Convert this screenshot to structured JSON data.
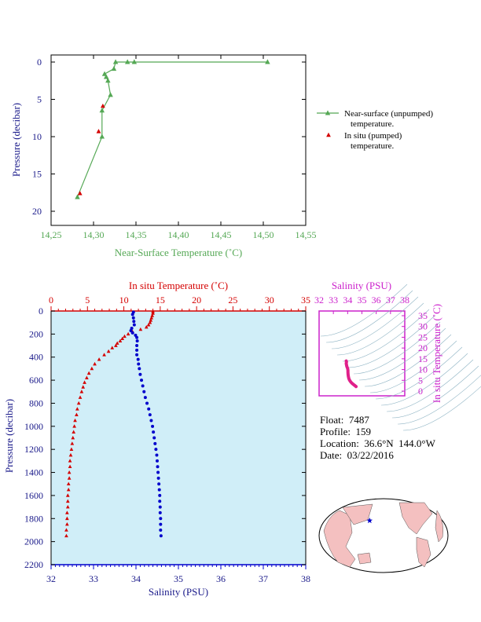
{
  "colors": {
    "green": "#55a855",
    "red": "#d40000",
    "blue": "#0000cc",
    "navy": "#1a1a8a",
    "magenta": "#cc22cc",
    "pink": "#e0208a",
    "panel_bg": "#d0eef8"
  },
  "legend": {
    "near_surface": [
      "Near-surface (unpumped)",
      "temperature."
    ],
    "in_situ": [
      "In situ (pumped)",
      "temperature."
    ]
  },
  "float_info": {
    "float": "Float:  7487",
    "profile": "Profile:  159",
    "location": "Location:  36.6°N  144.0°W",
    "date": "Date:  03/22/2016"
  },
  "map": {
    "marker": "star",
    "marker_lat": 36.6,
    "marker_lon": -144.0
  },
  "chart_data": [
    {
      "type": "line",
      "xlabel": "Near-Surface Temperature (˚C)",
      "ylabel": "Pressure (decibar)",
      "xlim": [
        14.25,
        14.55
      ],
      "ylim": [
        0,
        21
      ],
      "y_inverted": true,
      "xticks": [
        "14,25",
        "14,30",
        "14,35",
        "14,40",
        "14,45",
        "14,50",
        "14,55"
      ],
      "yticks": [
        "0",
        "5",
        "10",
        "15",
        "20"
      ],
      "series": [
        {
          "name": "Near-surface (unpumped) temperature.",
          "marker": "triangle",
          "points": [
            [
              14.505,
              0.0
            ],
            [
              14.348,
              0.0
            ],
            [
              14.34,
              0.0
            ],
            [
              14.326,
              0.0
            ],
            [
              14.324,
              0.9
            ],
            [
              14.313,
              1.6
            ],
            [
              14.315,
              2.0
            ],
            [
              14.317,
              2.5
            ],
            [
              14.32,
              4.4
            ],
            [
              14.31,
              6.5
            ],
            [
              14.31,
              10.0
            ],
            [
              14.281,
              18.1
            ]
          ]
        },
        {
          "name": "In situ (pumped) temperature.",
          "marker": "triangle",
          "points": [
            [
              14.311,
              5.9
            ],
            [
              14.306,
              9.3
            ],
            [
              14.284,
              17.6
            ]
          ]
        }
      ]
    },
    {
      "type": "scatter",
      "ylabel": "Pressure (decibar)",
      "x_top_label": "In situ Temperature (˚C)",
      "x_bottom_label": "Salinity (PSU)",
      "temp_lim": [
        0,
        35
      ],
      "sal_lim": [
        32,
        38
      ],
      "ylim": [
        0,
        2200
      ],
      "y_inverted": true,
      "temp_ticks": [
        "0",
        "5",
        "10",
        "15",
        "20",
        "25",
        "30",
        "35"
      ],
      "sal_ticks": [
        "32",
        "33",
        "34",
        "35",
        "36",
        "37",
        "38"
      ],
      "yticks": [
        "0",
        "200",
        "400",
        "600",
        "800",
        "1000",
        "1200",
        "1400",
        "1600",
        "1800",
        "2000",
        "2200"
      ],
      "temperature_profile": [
        [
          14.0,
          5
        ],
        [
          14.0,
          20
        ],
        [
          13.9,
          40
        ],
        [
          13.8,
          60
        ],
        [
          13.7,
          80
        ],
        [
          13.6,
          100
        ],
        [
          13.4,
          120
        ],
        [
          13.1,
          140
        ],
        [
          12.3,
          160
        ],
        [
          11.2,
          180
        ],
        [
          10.6,
          200
        ],
        [
          10.1,
          220
        ],
        [
          9.8,
          240
        ],
        [
          9.5,
          260
        ],
        [
          9.1,
          280
        ],
        [
          8.9,
          300
        ],
        [
          8.4,
          320
        ],
        [
          7.9,
          350
        ],
        [
          7.3,
          380
        ],
        [
          6.6,
          420
        ],
        [
          6.0,
          460
        ],
        [
          5.6,
          500
        ],
        [
          5.2,
          540
        ],
        [
          4.9,
          580
        ],
        [
          4.6,
          620
        ],
        [
          4.4,
          660
        ],
        [
          4.2,
          700
        ],
        [
          4.0,
          750
        ],
        [
          3.8,
          800
        ],
        [
          3.6,
          850
        ],
        [
          3.5,
          900
        ],
        [
          3.3,
          950
        ],
        [
          3.2,
          1000
        ],
        [
          3.1,
          1050
        ],
        [
          3.0,
          1100
        ],
        [
          2.9,
          1150
        ],
        [
          2.8,
          1200
        ],
        [
          2.7,
          1250
        ],
        [
          2.6,
          1300
        ],
        [
          2.6,
          1350
        ],
        [
          2.5,
          1400
        ],
        [
          2.5,
          1450
        ],
        [
          2.4,
          1500
        ],
        [
          2.4,
          1550
        ],
        [
          2.3,
          1600
        ],
        [
          2.3,
          1650
        ],
        [
          2.3,
          1700
        ],
        [
          2.2,
          1750
        ],
        [
          2.2,
          1800
        ],
        [
          2.2,
          1850
        ],
        [
          2.1,
          1900
        ],
        [
          2.1,
          1950
        ]
      ],
      "salinity_profile": [
        [
          33.94,
          10
        ],
        [
          33.92,
          30
        ],
        [
          33.94,
          60
        ],
        [
          33.95,
          90
        ],
        [
          33.96,
          120
        ],
        [
          33.9,
          150
        ],
        [
          33.88,
          170
        ],
        [
          33.92,
          190
        ],
        [
          33.99,
          210
        ],
        [
          34.02,
          230
        ],
        [
          34.03,
          260
        ],
        [
          34.02,
          300
        ],
        [
          34.02,
          340
        ],
        [
          34.02,
          380
        ],
        [
          34.05,
          420
        ],
        [
          34.06,
          460
        ],
        [
          34.08,
          500
        ],
        [
          34.1,
          550
        ],
        [
          34.13,
          600
        ],
        [
          34.16,
          650
        ],
        [
          34.19,
          700
        ],
        [
          34.22,
          750
        ],
        [
          34.26,
          800
        ],
        [
          34.3,
          850
        ],
        [
          34.33,
          900
        ],
        [
          34.36,
          950
        ],
        [
          34.39,
          1000
        ],
        [
          34.41,
          1050
        ],
        [
          34.43,
          1100
        ],
        [
          34.45,
          1150
        ],
        [
          34.47,
          1200
        ],
        [
          34.49,
          1250
        ],
        [
          34.5,
          1300
        ],
        [
          34.51,
          1350
        ],
        [
          34.52,
          1400
        ],
        [
          34.53,
          1450
        ],
        [
          34.54,
          1500
        ],
        [
          34.55,
          1550
        ],
        [
          34.56,
          1600
        ],
        [
          34.56,
          1650
        ],
        [
          34.57,
          1700
        ],
        [
          34.57,
          1750
        ],
        [
          34.58,
          1800
        ],
        [
          34.58,
          1850
        ],
        [
          34.58,
          1900
        ],
        [
          34.59,
          1950
        ]
      ]
    },
    {
      "type": "scatter",
      "xlabel": "Salinity (PSU)",
      "ylabel": "In situ Temperature (˚C)",
      "xlim": [
        32,
        38
      ],
      "ylim": [
        0,
        35
      ],
      "xticks": [
        "32",
        "33",
        "34",
        "35",
        "36",
        "37",
        "38"
      ],
      "yticks": [
        "0",
        "5",
        "10",
        "15",
        "20",
        "25",
        "30",
        "35"
      ],
      "ts_points": [
        [
          33.9,
          14.0
        ],
        [
          33.92,
          13.6
        ],
        [
          33.9,
          12.8
        ],
        [
          33.94,
          11.5
        ],
        [
          34.0,
          10.5
        ],
        [
          34.02,
          9.6
        ],
        [
          34.02,
          8.8
        ],
        [
          34.03,
          7.8
        ],
        [
          34.05,
          6.8
        ],
        [
          34.08,
          5.9
        ],
        [
          34.13,
          5.1
        ],
        [
          34.2,
          4.4
        ],
        [
          34.28,
          3.8
        ],
        [
          34.35,
          3.4
        ],
        [
          34.42,
          3.0
        ],
        [
          34.48,
          2.7
        ],
        [
          34.52,
          2.5
        ],
        [
          34.55,
          2.3
        ],
        [
          34.58,
          2.2
        ],
        [
          34.59,
          2.1
        ]
      ]
    }
  ]
}
